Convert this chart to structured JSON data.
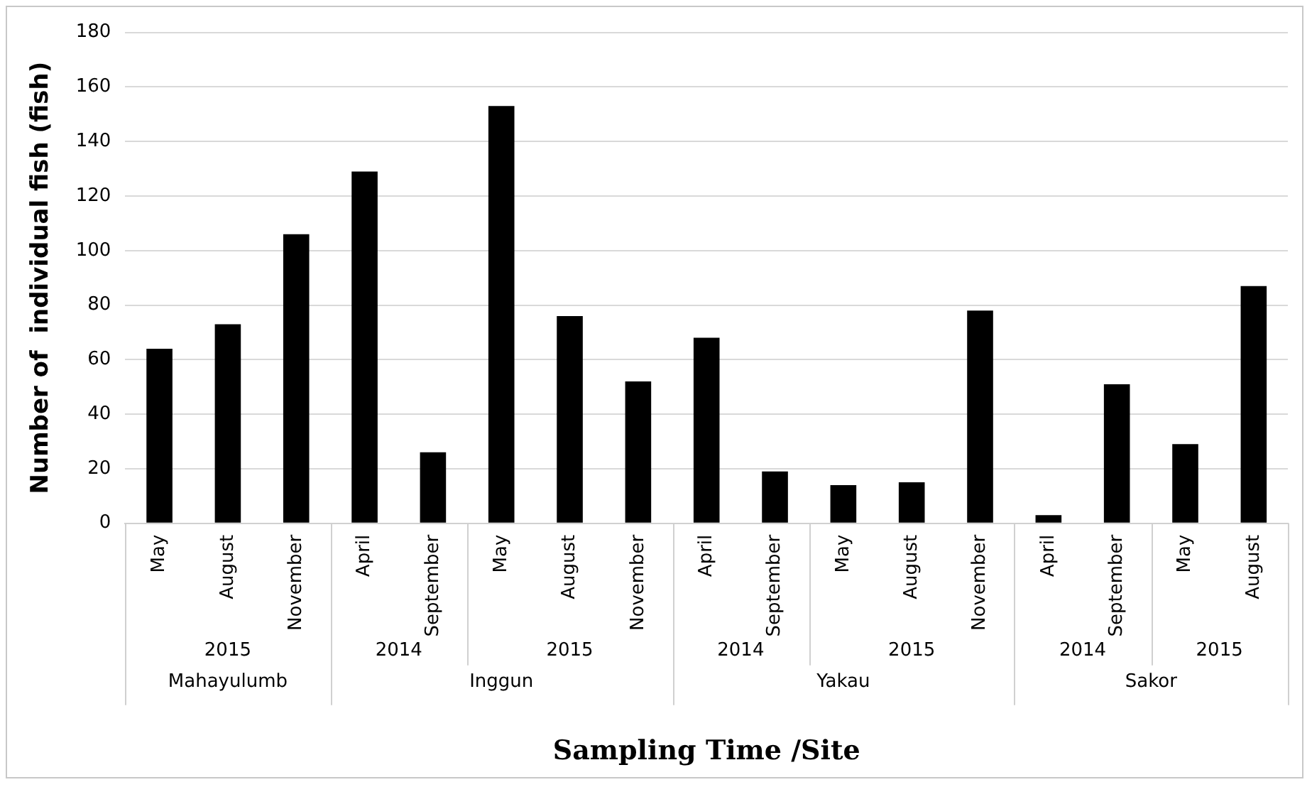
{
  "chart_data": {
    "type": "bar",
    "xlabel": "Sampling Time /Site",
    "ylabel": "Number of  individual fish (fish)",
    "categories": [
      "May",
      "August",
      "November",
      "April",
      "September",
      "May",
      "August",
      "November",
      "April",
      "September",
      "May",
      "August",
      "November",
      "April",
      "September",
      "May",
      "August"
    ],
    "values": [
      64,
      73,
      106,
      129,
      26,
      153,
      76,
      52,
      68,
      19,
      14,
      15,
      78,
      3,
      51,
      29,
      87
    ],
    "color": "#000000",
    "ylim": [
      0,
      180
    ],
    "yticks": [
      0,
      20,
      40,
      60,
      80,
      100,
      120,
      140,
      160,
      180
    ],
    "grid": "y",
    "legend": false,
    "annotations": [
      "2015",
      "2014",
      "2015",
      "2014",
      "2015",
      "2014",
      "2015",
      "Mahayulumb",
      "Inggun",
      "Yakau",
      "Sakor"
    ]
  }
}
